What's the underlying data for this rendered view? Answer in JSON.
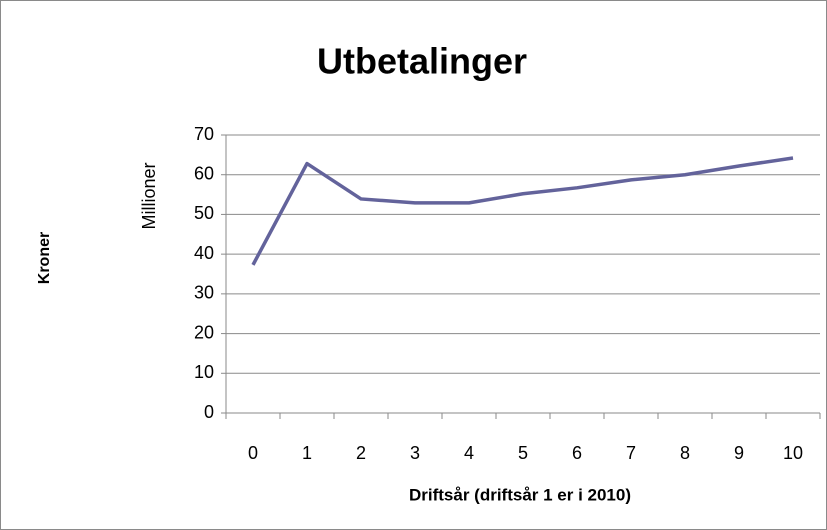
{
  "chart_data": {
    "type": "line",
    "title": "Utbetalinger",
    "y_label": "Kroner",
    "unit_label": "Millioner",
    "x_label": "Driftsår (driftsår 1 er i 2010)",
    "categories": [
      "0",
      "1",
      "2",
      "3",
      "4",
      "5",
      "6",
      "7",
      "8",
      "9",
      "10"
    ],
    "series": [
      {
        "name": "Utbetalinger",
        "color": "#63639b",
        "values": [
          37.3,
          62.8,
          53.9,
          52.9,
          52.9,
          55.2,
          56.7,
          58.7,
          60,
          62.2,
          64.2
        ]
      }
    ],
    "ylim": [
      0,
      70
    ],
    "yticks": [
      0,
      10,
      20,
      30,
      40,
      50,
      60,
      70
    ],
    "grid": true
  }
}
